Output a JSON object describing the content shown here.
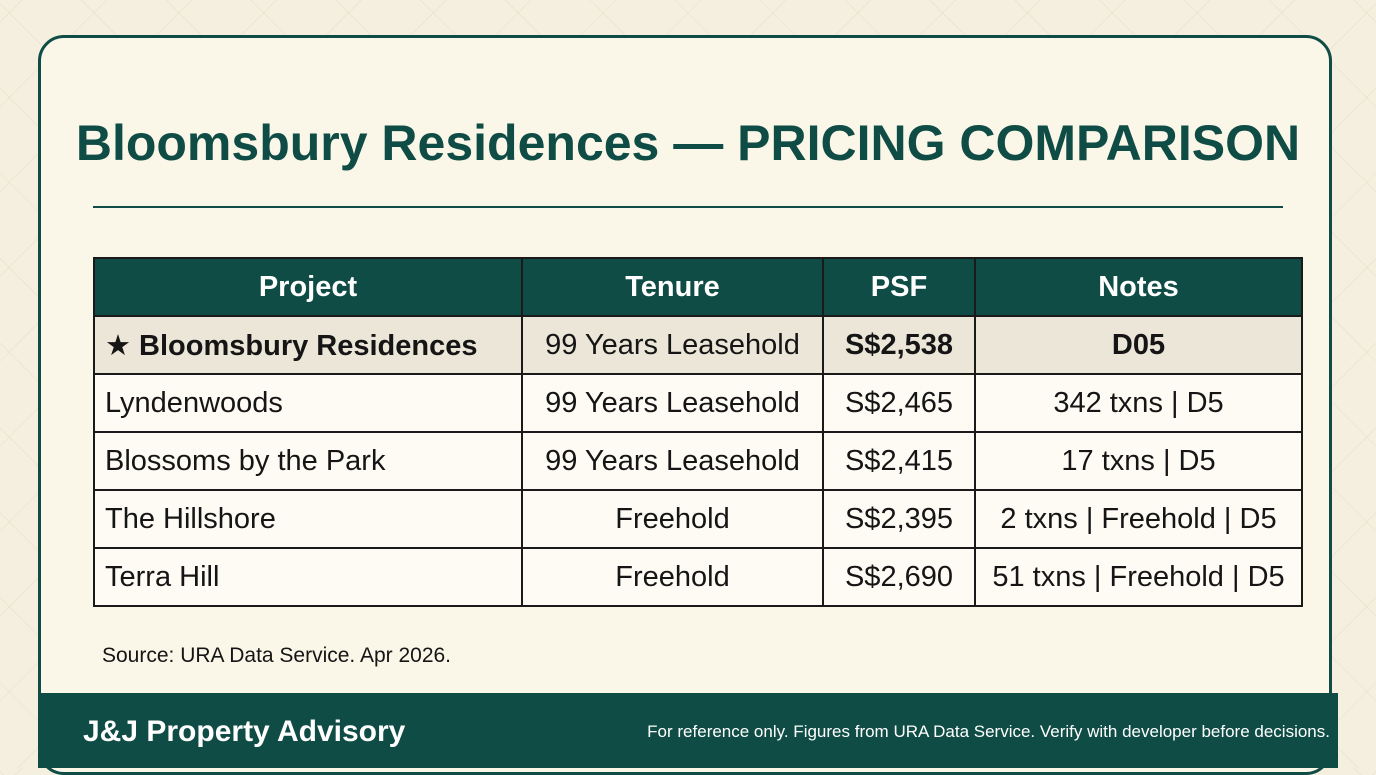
{
  "header": {
    "title": "Bloomsbury Residences — PRICING COMPARISON"
  },
  "table": {
    "columns": [
      "Project",
      "Tenure",
      "PSF",
      "Notes"
    ],
    "rows": [
      [
        "★ Bloomsbury Residences",
        "99 Years Leasehold",
        "S$2,538",
        "D05"
      ],
      [
        "Lyndenwoods",
        "99 Years Leasehold",
        "S$2,465",
        "342 txns | D5"
      ],
      [
        "Blossoms by the Park",
        "99 Years Leasehold",
        "S$2,415",
        "17 txns | D5"
      ],
      [
        "The Hillshore",
        "Freehold",
        "S$2,395",
        "2 txns | Freehold | D5"
      ],
      [
        "Terra Hill",
        "Freehold",
        "S$2,690",
        "51 txns | Freehold | D5"
      ]
    ],
    "highlight_row": 0
  },
  "source": "Source: URA Data Service. Apr 2026.",
  "footer": {
    "brand": "J&J Property Advisory",
    "disclaimer": "For reference only. Figures from URA Data Service. Verify with developer before decisions."
  }
}
